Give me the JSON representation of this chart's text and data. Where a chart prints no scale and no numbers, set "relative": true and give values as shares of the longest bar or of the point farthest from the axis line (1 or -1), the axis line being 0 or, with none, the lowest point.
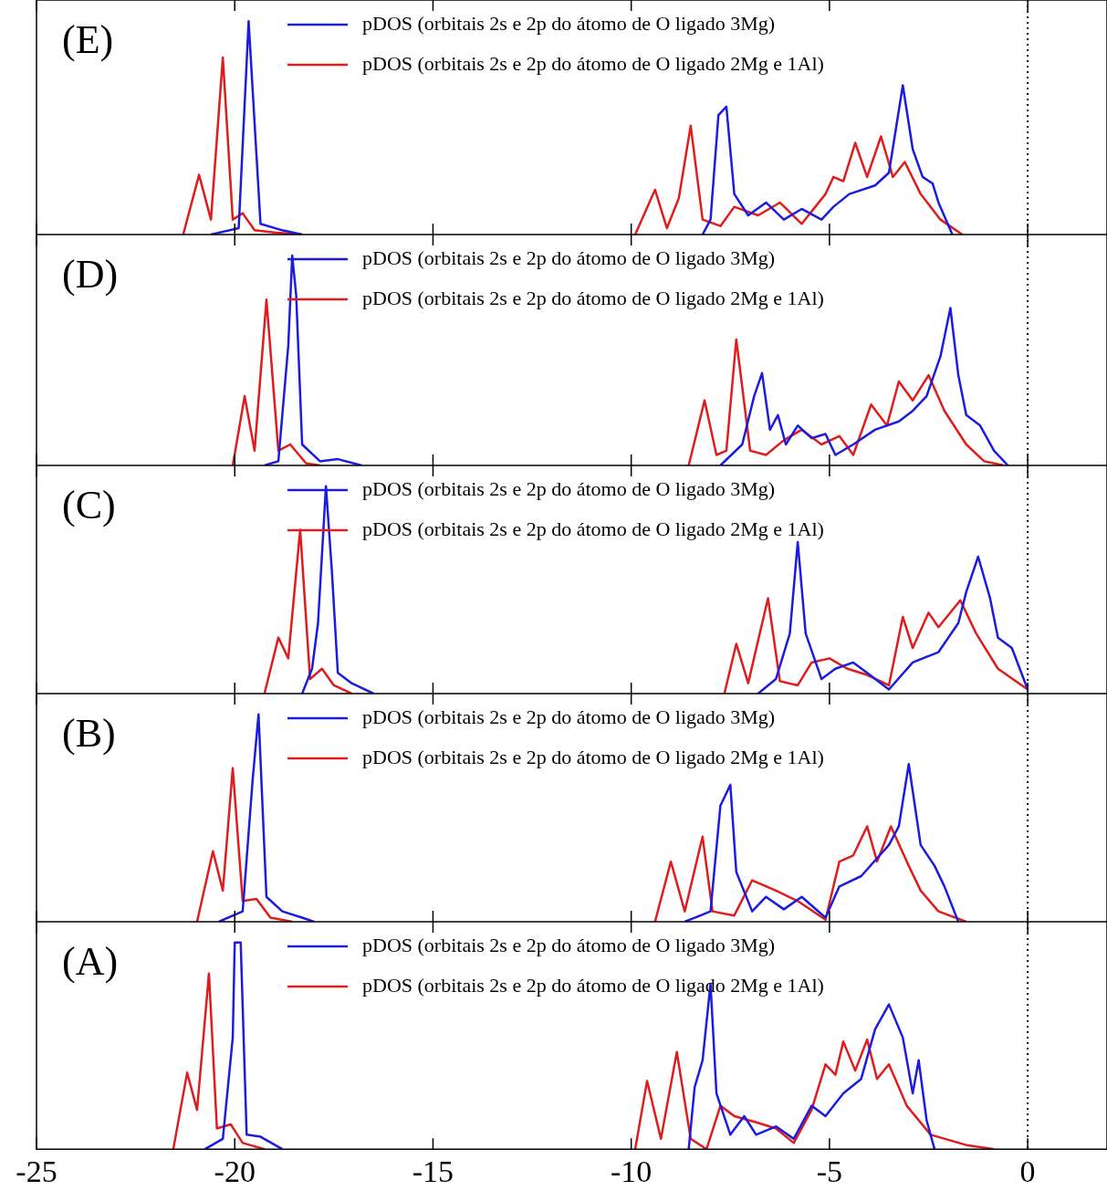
{
  "chart_data": [
    {
      "type": "line",
      "annotations": [
        "(E)"
      ],
      "relative": true,
      "legend": "top",
      "tick_labels": false,
      "xlim": [
        -25,
        2
      ],
      "xticks": [
        -25,
        -20,
        -15,
        -10,
        -5,
        0
      ],
      "ref_lines": [
        {
          "axis": "x",
          "value": 0,
          "line_style": "dotted"
        }
      ],
      "series": [
        {
          "name": "pDOS (orbitais 2s e 2p do átomo de O ligado 3Mg)",
          "color": "#1c1ce0",
          "x": [
            -20.6,
            -19.9,
            -19.65,
            -19.35,
            -18.8,
            -18.3,
            -14,
            -8.2,
            -8.0,
            -7.8,
            -7.6,
            -7.4,
            -7.05,
            -6.6,
            -6.15,
            -5.7,
            -5.2,
            -4.9,
            -4.5,
            -3.85,
            -3.5,
            -3.15,
            -2.9,
            -2.65,
            -2.4,
            -2.25,
            -1.9
          ],
          "values": [
            0,
            0.03,
            1,
            0.05,
            0.02,
            0,
            null,
            0,
            0.07,
            0.56,
            0.6,
            0.19,
            0.09,
            0.15,
            0.07,
            0.12,
            0.07,
            0.13,
            0.19,
            0.23,
            0.29,
            0.7,
            0.4,
            0.27,
            0.24,
            0.15,
            0
          ]
        },
        {
          "name": "pDOS (orbitais 2s e 2p do átomo de O ligado 2Mg e 1Al)",
          "color": "#e01c1c",
          "x": [
            -21.3,
            -20.9,
            -20.6,
            -20.3,
            -20.05,
            -19.8,
            -19.5,
            -19.0,
            -18.3,
            -14,
            -9.9,
            -9.4,
            -9.1,
            -8.8,
            -8.5,
            -8.2,
            -7.75,
            -7.4,
            -6.8,
            -6.25,
            -5.7,
            -5.1,
            -4.9,
            -4.65,
            -4.35,
            -4.05,
            -3.7,
            -3.4,
            -3.1,
            -2.7,
            -2.2,
            -1.65
          ],
          "values": [
            0,
            0.28,
            0.07,
            0.83,
            0.07,
            0.1,
            0.02,
            0.01,
            0,
            null,
            0,
            0.21,
            0.03,
            0.17,
            0.51,
            0.07,
            0.04,
            0.13,
            0.09,
            0.15,
            0.05,
            0.19,
            0.27,
            0.25,
            0.43,
            0.27,
            0.46,
            0.27,
            0.34,
            0.19,
            0.07,
            0
          ]
        }
      ]
    },
    {
      "type": "line",
      "annotations": [
        "(D)"
      ],
      "relative": true,
      "legend": "top",
      "tick_labels": false,
      "xlim": [
        -25,
        2
      ],
      "xticks": [
        -25,
        -20,
        -15,
        -10,
        -5,
        0
      ],
      "ref_lines": [
        {
          "axis": "x",
          "value": 0,
          "line_style": "dotted"
        }
      ],
      "series": [
        {
          "name": "pDOS (orbitais 2s e 2p do átomo de O ligado 3Mg)",
          "color": "#1c1ce0",
          "x": [
            -19.25,
            -18.9,
            -18.65,
            -18.55,
            -18.45,
            -18.3,
            -17.85,
            -17.4,
            -16.8,
            -12,
            -7.75,
            -7.2,
            -6.9,
            -6.7,
            -6.5,
            -6.3,
            -6.1,
            -5.8,
            -5.45,
            -5.1,
            -4.85,
            -4.4,
            -3.85,
            -3.25,
            -2.9,
            -2.55,
            -2.2,
            -1.95,
            -1.75,
            -1.55,
            -1.2,
            -0.85,
            -0.5
          ],
          "values": [
            0,
            0.02,
            0.57,
            1,
            0.81,
            0.1,
            0.02,
            0.03,
            0,
            null,
            0,
            0.1,
            0.33,
            0.44,
            0.17,
            0.24,
            0.1,
            0.19,
            0.13,
            0.15,
            0.05,
            0.1,
            0.17,
            0.21,
            0.26,
            0.33,
            0.52,
            0.75,
            0.43,
            0.24,
            0.19,
            0.07,
            0
          ]
        },
        {
          "name": "pDOS (orbitais 2s e 2p do átomo de O ligado 2Mg e 1Al)",
          "color": "#e01c1c",
          "x": [
            -20.05,
            -19.75,
            -19.5,
            -19.2,
            -18.9,
            -18.6,
            -18.2,
            -17.85,
            -13,
            -8.55,
            -8.15,
            -7.85,
            -7.6,
            -7.35,
            -7.0,
            -6.6,
            -6.15,
            -5.7,
            -5.2,
            -4.75,
            -4.4,
            -3.95,
            -3.55,
            -3.25,
            -2.9,
            -2.5,
            -2.1,
            -1.55,
            -1.1,
            -0.6
          ],
          "values": [
            0,
            0.33,
            0.07,
            0.79,
            0.07,
            0.1,
            0.01,
            0,
            null,
            0,
            0.31,
            0.05,
            0.07,
            0.6,
            0.07,
            0.05,
            0.12,
            0.17,
            0.1,
            0.14,
            0.05,
            0.29,
            0.19,
            0.4,
            0.31,
            0.43,
            0.26,
            0.1,
            0.02,
            0
          ]
        }
      ]
    },
    {
      "type": "line",
      "annotations": [
        "(C)"
      ],
      "relative": true,
      "legend": "top",
      "tick_labels": false,
      "xlim": [
        -25,
        2
      ],
      "xticks": [
        -25,
        -20,
        -15,
        -10,
        -5,
        0
      ],
      "ref_lines": [
        {
          "axis": "x",
          "value": 0,
          "line_style": "dotted"
        }
      ],
      "series": [
        {
          "name": "pDOS (orbitais 2s e 2p do átomo de O ligado 3Mg)",
          "color": "#1c1ce0",
          "x": [
            -18.3,
            -18.05,
            -17.9,
            -17.7,
            -17.55,
            -17.4,
            -17.05,
            -16.5,
            -12,
            -6.8,
            -6.35,
            -6.0,
            -5.8,
            -5.6,
            -5.2,
            -4.85,
            -4.4,
            -4.05,
            -3.5,
            -2.9,
            -2.25,
            -1.75,
            -1.55,
            -1.25,
            -0.95,
            -0.75,
            -0.4,
            0
          ],
          "values": [
            0,
            0.12,
            0.34,
            1,
            0.59,
            0.1,
            0.05,
            0,
            null,
            0,
            0.07,
            0.29,
            0.73,
            0.29,
            0.07,
            0.12,
            0.15,
            0.1,
            0.02,
            0.15,
            0.2,
            0.34,
            0.49,
            0.66,
            0.46,
            0.27,
            0.22,
            0.02
          ]
        },
        {
          "name": "pDOS (orbitais 2s e 2p do átomo de O ligado 2Mg e 1Al)",
          "color": "#e01c1c",
          "x": [
            -19.25,
            -18.9,
            -18.65,
            -18.35,
            -18.1,
            -17.8,
            -17.5,
            -17.05,
            -12,
            -7.65,
            -7.35,
            -7.05,
            -6.55,
            -6.25,
            -5.8,
            -5.45,
            -5.0,
            -4.55,
            -4.05,
            -3.5,
            -3.15,
            -2.9,
            -2.5,
            -2.25,
            -1.7,
            -1.3,
            -0.75,
            0
          ],
          "values": [
            0,
            0.27,
            0.17,
            0.79,
            0.07,
            0.12,
            0.04,
            0,
            null,
            0,
            0.24,
            0.05,
            0.46,
            0.06,
            0.04,
            0.15,
            0.17,
            0.12,
            0.09,
            0.04,
            0.37,
            0.22,
            0.39,
            0.32,
            0.45,
            0.29,
            0.12,
            0.02
          ]
        }
      ]
    },
    {
      "type": "line",
      "annotations": [
        "(B)"
      ],
      "relative": true,
      "legend": "top",
      "tick_labels": false,
      "xlim": [
        -25,
        2
      ],
      "xticks": [
        -25,
        -20,
        -15,
        -10,
        -5,
        0
      ],
      "ref_lines": [
        {
          "axis": "x",
          "value": 0,
          "line_style": "dotted"
        }
      ],
      "series": [
        {
          "name": "pDOS (orbitais 2s e 2p do átomo de O ligado 3Mg)",
          "color": "#1c1ce0",
          "x": [
            -20.4,
            -19.8,
            -19.55,
            -19.4,
            -19.2,
            -18.8,
            -18.3,
            -18.0,
            -13,
            -8.65,
            -8.0,
            -7.75,
            -7.5,
            -7.35,
            -6.95,
            -6.6,
            -6.15,
            -5.7,
            -5.1,
            -4.75,
            -4.2,
            -3.5,
            -3.25,
            -3.0,
            -2.7,
            -2.35,
            -2.1,
            -1.75
          ],
          "values": [
            0,
            0.05,
            0.68,
            1,
            0.12,
            0.05,
            0.02,
            0,
            null,
            0,
            0.05,
            0.56,
            0.66,
            0.24,
            0.05,
            0.12,
            0.06,
            0.12,
            0.02,
            0.17,
            0.22,
            0.37,
            0.46,
            0.76,
            0.37,
            0.27,
            0.17,
            0
          ]
        },
        {
          "name": "pDOS (orbitais 2s e 2p do átomo de O ligado 2Mg e 1Al)",
          "color": "#e01c1c",
          "x": [
            -20.95,
            -20.55,
            -20.3,
            -20.05,
            -19.8,
            -19.45,
            -19.1,
            -18.55,
            -14,
            -9.4,
            -9.0,
            -8.65,
            -8.2,
            -7.95,
            -7.4,
            -6.95,
            -6.35,
            -5.8,
            -5.1,
            -4.75,
            -4.4,
            -4.05,
            -3.8,
            -3.45,
            -3.05,
            -2.7,
            -2.25,
            -1.55
          ],
          "values": [
            0,
            0.34,
            0.15,
            0.74,
            0.1,
            0.11,
            0.02,
            0,
            null,
            0,
            0.29,
            0.05,
            0.41,
            0.05,
            0.03,
            0.2,
            0.15,
            0.1,
            0.01,
            0.29,
            0.32,
            0.46,
            0.29,
            0.46,
            0.29,
            0.15,
            0.05,
            0
          ]
        }
      ]
    },
    {
      "type": "line",
      "annotations": [
        "(A)"
      ],
      "relative": true,
      "legend": "top",
      "tick_labels": "x",
      "xlim": [
        -25,
        2
      ],
      "xticks": [
        -25,
        -20,
        -15,
        -10,
        -5,
        0
      ],
      "ref_lines": [
        {
          "axis": "x",
          "value": 0,
          "line_style": "dotted"
        }
      ],
      "series": [
        {
          "name": "pDOS (orbitais 2s e 2p do átomo de O ligado 3Mg)",
          "color": "#1c1ce0",
          "x": [
            -20.75,
            -20.3,
            -20.05,
            -20.0,
            -19.85,
            -19.7,
            -19.35,
            -18.8,
            -14,
            -8.55,
            -8.4,
            -8.2,
            -8.0,
            -7.85,
            -7.5,
            -7.15,
            -6.85,
            -6.35,
            -5.9,
            -5.45,
            -5.1,
            -4.65,
            -4.2,
            -3.85,
            -3.5,
            -3.15,
            -2.9,
            -2.75,
            -2.55,
            -2.35
          ],
          "values": [
            0,
            0.05,
            0.54,
            1,
            1,
            0.07,
            0.06,
            0,
            null,
            0,
            0.3,
            0.43,
            0.8,
            0.27,
            0.07,
            0.16,
            0.07,
            0.11,
            0.05,
            0.21,
            0.16,
            0.27,
            0.34,
            0.58,
            0.7,
            0.54,
            0.27,
            0.43,
            0.14,
            0
          ]
        },
        {
          "name": "pDOS (orbitais 2s e 2p do átomo de O ligado 2Mg e 1Al)",
          "color": "#e01c1c",
          "x": [
            -21.55,
            -21.2,
            -20.95,
            -20.65,
            -20.45,
            -20.1,
            -19.8,
            -19.25,
            -14,
            -9.9,
            -9.6,
            -9.25,
            -8.85,
            -8.5,
            -8.1,
            -7.75,
            -7.4,
            -6.85,
            -6.35,
            -5.9,
            -5.45,
            -5.1,
            -4.85,
            -4.65,
            -4.35,
            -4.05,
            -3.8,
            -3.5,
            -3.05,
            -2.45,
            -1.55,
            -0.85
          ],
          "values": [
            0,
            0.37,
            0.19,
            0.85,
            0.1,
            0.12,
            0.03,
            0,
            null,
            0,
            0.33,
            0.05,
            0.47,
            0.05,
            0,
            0.21,
            0.16,
            0.13,
            0.1,
            0.03,
            0.19,
            0.41,
            0.36,
            0.52,
            0.38,
            0.53,
            0.34,
            0.41,
            0.21,
            0.07,
            0.02,
            0
          ]
        }
      ]
    }
  ]
}
